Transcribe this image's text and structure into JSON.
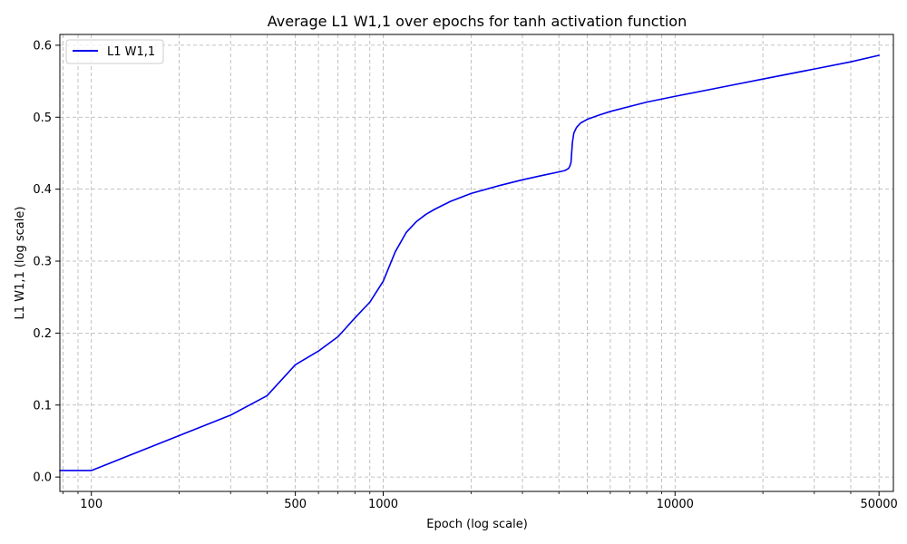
{
  "chart_data": {
    "type": "line",
    "title": "Average L1 W1,1 over epochs for tanh activation function",
    "xlabel": "Epoch (log scale)",
    "ylabel": "L1 W1,1 (log scale)",
    "x_scale": "log",
    "xlim": [
      78,
      56000
    ],
    "ylim": [
      -0.02,
      0.615
    ],
    "x_major_ticks": [
      100,
      500,
      1000,
      10000,
      50000
    ],
    "x_tick_labels": [
      "100",
      "500",
      "1000",
      "10000",
      "50000"
    ],
    "y_ticks": [
      0.0,
      0.1,
      0.2,
      0.3,
      0.4,
      0.5,
      0.6
    ],
    "y_tick_labels": [
      "0.0",
      "0.1",
      "0.2",
      "0.3",
      "0.4",
      "0.5",
      "0.6"
    ],
    "grid": true,
    "legend_position": "top-left",
    "series": [
      {
        "name": "L1 W1,1",
        "color": "#0000ee",
        "x": [
          78,
          100,
          300,
          400,
          500,
          600,
          700,
          800,
          900,
          1000,
          1100,
          1200,
          1300,
          1400,
          1500,
          1700,
          2000,
          2500,
          3000,
          3500,
          4000,
          4200,
          4320,
          4360,
          4400,
          4450,
          4500,
          4600,
          4750,
          5000,
          5500,
          6000,
          7000,
          8000,
          10000,
          15000,
          20000,
          30000,
          40000,
          50000
        ],
        "y": [
          0.009,
          0.009,
          0.086,
          0.113,
          0.156,
          0.175,
          0.195,
          0.221,
          0.243,
          0.272,
          0.313,
          0.34,
          0.355,
          0.365,
          0.372,
          0.383,
          0.394,
          0.405,
          0.413,
          0.419,
          0.424,
          0.426,
          0.429,
          0.432,
          0.437,
          0.465,
          0.478,
          0.486,
          0.492,
          0.497,
          0.503,
          0.508,
          0.515,
          0.521,
          0.529,
          0.543,
          0.553,
          0.567,
          0.577,
          0.586
        ]
      }
    ]
  }
}
